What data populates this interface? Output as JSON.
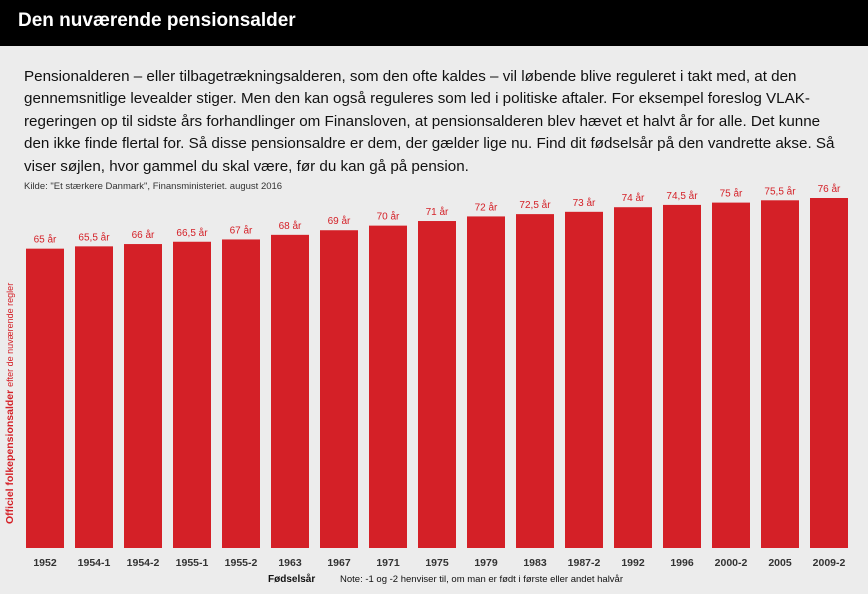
{
  "header": {
    "title": "Den nuværende pensionsalder"
  },
  "intro": {
    "text": "Pensionalderen – eller tilbagetrækningsalderen, som den ofte kaldes – vil løbende blive reguleret i takt med, at den gennemsnitlige levealder stiger. Men den kan også reguleres som led i politiske aftaler. For eksempel foreslog VLAK-regeringen op til sidste års forhandlinger om Finansloven, at pensionsalderen blev hævet et halvt år for alle. Det kunne den ikke finde flertal for. Så disse pensionsaldre er dem, der gælder lige nu. Find dit fødselsår på den vandrette akse. Så viser søjlen, hvor gammel du skal være, før du kan gå på pension."
  },
  "source": {
    "text": "Kilde: \"Et stærkere Danmark\", Finansministeriet. august 2016"
  },
  "footer": {
    "xlabel": "Fødselsår",
    "note": "Note: -1 og -2 henviser til, om man er født i første eller andet halvår"
  },
  "chart_data": {
    "type": "bar",
    "title": "Den nuværende pensionsalder",
    "xlabel": "Fødselsår",
    "ylabel_bold": "Officiel folkepensionsalder",
    "ylabel_rest": "efter de nuværende regler",
    "categories": [
      "1952",
      "1954-1",
      "1954-2",
      "1955-1",
      "1955-2",
      "1963",
      "1967",
      "1971",
      "1975",
      "1979",
      "1983",
      "1987-2",
      "1992",
      "1996",
      "2000-2",
      "2005",
      "2009-2"
    ],
    "values": [
      65,
      65.5,
      66,
      66.5,
      67,
      68,
      69,
      70,
      71,
      72,
      72.5,
      73,
      74,
      74.5,
      75,
      75.5,
      76
    ],
    "data_labels": [
      "65 år",
      "65,5 år",
      "66 år",
      "66,5 år",
      "67 år",
      "68 år",
      "69 år",
      "70 år",
      "71 år",
      "72 år",
      "72,5 år",
      "73 år",
      "74 år",
      "74,5 år",
      "75 år",
      "75,5 år",
      "76 år"
    ],
    "ylim": [
      0,
      76
    ],
    "grid": false,
    "bar_color": "#d42027"
  }
}
